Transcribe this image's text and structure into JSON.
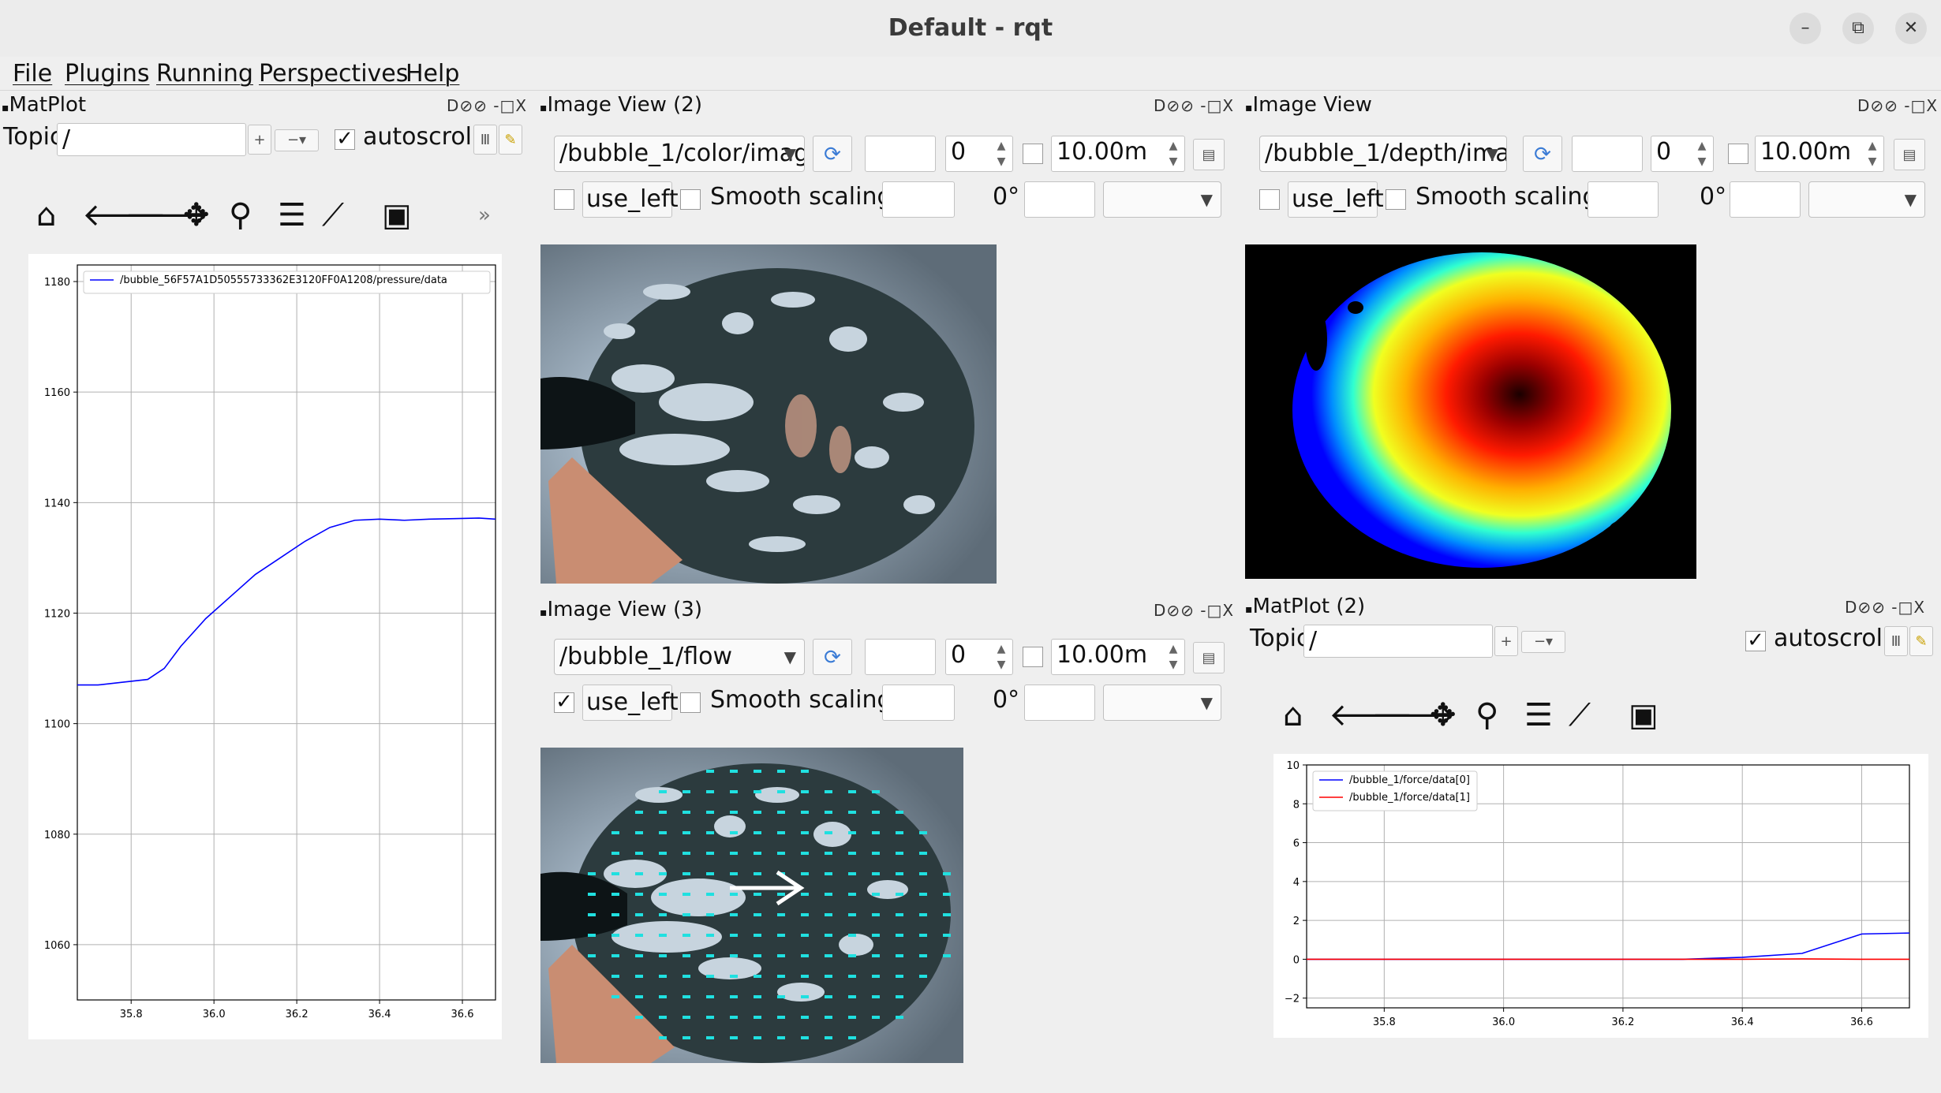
{
  "window": {
    "title": "Default - rqt",
    "minimize": "–",
    "maximize": "⧉",
    "close": "✕"
  },
  "menubar": [
    "File",
    "Plugins",
    "Running",
    "Perspectives",
    "Help"
  ],
  "dock_controls": "D⊘⊘ -□X",
  "matplot1": {
    "title": "MatPlot",
    "topic_label": "Topic",
    "topic_value": "/",
    "add_btn": "+",
    "remove_btn": "−▾",
    "autoscroll_label": "autoscroll",
    "autoscroll_checked": true,
    "chart_data": {
      "type": "line",
      "series": [
        {
          "name": "/bubble_56F57A1D50555733362E3120FF0A1208/pressure/data",
          "color": "#0000ff",
          "x": [
            35.67,
            35.72,
            35.78,
            35.84,
            35.88,
            35.92,
            35.98,
            36.04,
            36.1,
            36.16,
            36.22,
            36.28,
            36.34,
            36.4,
            36.46,
            36.52,
            36.58,
            36.64,
            36.68
          ],
          "y": [
            1107,
            1107,
            1107.5,
            1108,
            1110,
            1114,
            1119,
            1123,
            1127,
            1130,
            1133,
            1135.5,
            1136.8,
            1137,
            1136.8,
            1137,
            1137.1,
            1137.2,
            1137
          ]
        }
      ],
      "xlim": [
        35.67,
        36.68
      ],
      "ylim": [
        1050,
        1183
      ],
      "xticks": [
        35.8,
        36.0,
        36.2,
        36.4,
        36.6
      ],
      "xtick_labels": [
        "35.8",
        "36.0",
        "36.2",
        "36.4",
        "36.6"
      ],
      "yticks": [
        1060,
        1080,
        1100,
        1120,
        1140,
        1160,
        1180
      ],
      "ytick_labels": [
        "1060",
        "1080",
        "1100",
        "1120",
        "1140",
        "1160",
        "1180"
      ],
      "grid": true,
      "legend": "top"
    }
  },
  "imageview2": {
    "title": "Image View (2)",
    "topic": "/bubble_1/color/imag",
    "spin_value": "0",
    "max_range": "10.00m",
    "use_left_label": "use_left",
    "use_left_checked": false,
    "smooth_label": "Smooth scaling",
    "rotation": "0°"
  },
  "imageview1": {
    "title": "Image View",
    "topic": "/bubble_1/depth/ima",
    "spin_value": "0",
    "max_range": "10.00m",
    "use_left_label": "use_left",
    "use_left_checked": false,
    "smooth_label": "Smooth scaling",
    "rotation": "0°"
  },
  "imageview3": {
    "title": "Image View (3)",
    "topic": "/bubble_1/flow",
    "spin_value": "0",
    "max_range": "10.00m",
    "use_left_label": "use_left",
    "use_left_checked": true,
    "smooth_label": "Smooth scaling",
    "rotation": "0°"
  },
  "matplot2": {
    "title": "MatPlot (2)",
    "topic_label": "Topic",
    "topic_value": "/",
    "add_btn": "+",
    "remove_btn": "−▾",
    "autoscroll_label": "autoscroll",
    "autoscroll_checked": true,
    "chart_data": {
      "type": "line",
      "series": [
        {
          "name": "/bubble_1/force/data[0]",
          "color": "#0000ff",
          "x": [
            35.67,
            35.9,
            36.1,
            36.3,
            36.4,
            36.5,
            36.6,
            36.68
          ],
          "y": [
            0,
            0,
            0,
            0,
            0.1,
            0.3,
            1.3,
            1.35
          ]
        },
        {
          "name": "/bubble_1/force/data[1]",
          "color": "#ff0000",
          "x": [
            35.67,
            35.9,
            36.1,
            36.3,
            36.4,
            36.5,
            36.6,
            36.68
          ],
          "y": [
            0,
            0,
            0,
            0,
            0,
            0.02,
            0,
            0
          ]
        }
      ],
      "xlim": [
        35.67,
        36.68
      ],
      "ylim": [
        -2.5,
        10
      ],
      "xticks": [
        35.8,
        36.0,
        36.2,
        36.4,
        36.6
      ],
      "xtick_labels": [
        "35.8",
        "36.0",
        "36.2",
        "36.4",
        "36.6"
      ],
      "yticks": [
        -2,
        0,
        2,
        4,
        6,
        8,
        10
      ],
      "ytick_labels": [
        "−2",
        "0",
        "2",
        "4",
        "6",
        "8",
        "10"
      ],
      "grid": true,
      "legend": "top-left"
    }
  },
  "toolbar_icons": [
    "home-icon",
    "back-arrow-icon",
    "forward-arrow-icon",
    "pan-icon",
    "zoom-icon",
    "configure-subplots-icon",
    "edit-axis-icon",
    "save-icon"
  ],
  "toolbar_more": "»"
}
